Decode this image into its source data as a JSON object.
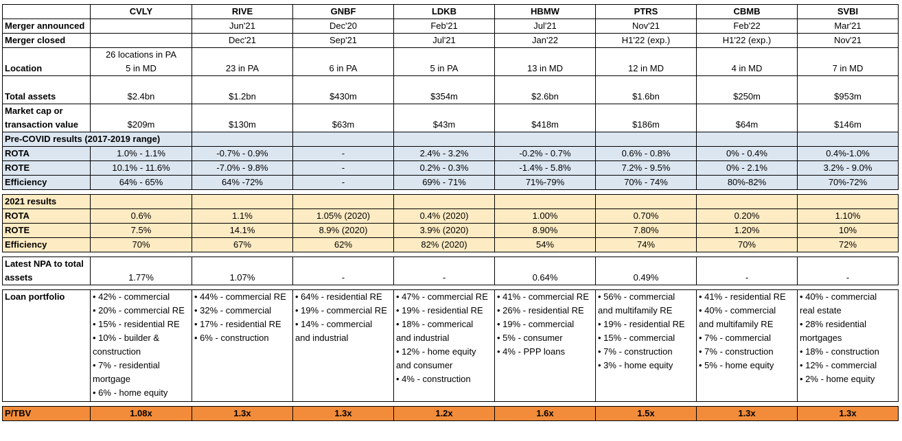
{
  "banks": [
    "CVLY",
    "RIVE",
    "GNBF",
    "LDKB",
    "HBMW",
    "PTRS",
    "CBMB",
    "SVBI"
  ],
  "rows": {
    "merger_announced": {
      "label": "Merger announced",
      "values": [
        "",
        "Jun'21",
        "Dec'20",
        "Feb'21",
        "Jul'21",
        "Nov'21",
        "Feb'22",
        "Mar'21"
      ]
    },
    "merger_closed": {
      "label": "Merger closed",
      "values": [
        "",
        "Dec'21",
        "Sep'21",
        "Jul'21",
        "Jan'22",
        "H1'22 (exp.)",
        "H1'22 (exp.)",
        "Nov'21"
      ]
    },
    "location": {
      "label": "Location",
      "values": [
        [
          "26 locations in PA",
          "5 in MD"
        ],
        [
          "23 in PA"
        ],
        [
          "6 in PA"
        ],
        [
          "5 in PA"
        ],
        [
          "13 in MD"
        ],
        [
          "12 in MD"
        ],
        [
          "4 in MD"
        ],
        [
          "7 in MD"
        ]
      ]
    },
    "total_assets": {
      "label": "Total assets",
      "values": [
        "$2.4bn",
        "$1.2bn",
        "$430m",
        "$354m",
        "$2.6bn",
        "$1.6bn",
        "$250m",
        "$953m"
      ]
    },
    "market_cap": {
      "label_line1": "Market cap or",
      "label_line2": "transaction value",
      "values": [
        "$209m",
        "$130m",
        "$63m",
        "$43m",
        "$418m",
        "$186m",
        "$64m",
        "$146m"
      ]
    }
  },
  "pre_covid": {
    "title": "Pre-COVID results (2017-2019 range)",
    "rota": {
      "label": "ROTA",
      "values": [
        "1.0% - 1.1%",
        "-0.7% - 0.9%",
        "-",
        "2.4% - 3.2%",
        "-0.2% - 0.7%",
        "0.6% - 0.8%",
        "0% - 0.4%",
        "0.4%-1.0%"
      ]
    },
    "rote": {
      "label": "ROTE",
      "values": [
        "10.1% - 11.6%",
        "-7.0% - 9.8%",
        "-",
        "0.2% - 0.3%",
        "-1.4% - 5.8%",
        "7.2% - 9.5%",
        "0% - 2.1%",
        "3.2% - 9.0%"
      ]
    },
    "efficiency": {
      "label": "Efficiency",
      "values": [
        "64% - 65%",
        "64% -72%",
        "-",
        "69% - 71%",
        "71%-79%",
        "70% - 74%",
        "80%-82%",
        "70%-72%"
      ]
    }
  },
  "results_2021": {
    "title": "2021 results",
    "rota": {
      "label": "ROTA",
      "values": [
        "0.6%",
        "1.1%",
        "1.05% (2020)",
        "0.4% (2020)",
        "1.00%",
        "0.70%",
        "0.20%",
        "1.10%"
      ]
    },
    "rote": {
      "label": "ROTE",
      "values": [
        "7.5%",
        "14.1%",
        "8.9% (2020)",
        "3.9% (2020)",
        "8.90%",
        "7.80%",
        "1.20%",
        "10%"
      ]
    },
    "efficiency": {
      "label": "Efficiency",
      "values": [
        "70%",
        "67%",
        "62%",
        "82% (2020)",
        "54%",
        "74%",
        "70%",
        "72%"
      ]
    }
  },
  "npa": {
    "label_line1": "Latest NPA to total",
    "label_line2": "assets",
    "values": [
      "1.77%",
      "1.07%",
      "-",
      "-",
      "0.64%",
      "0.49%",
      "-",
      "-"
    ]
  },
  "loan_portfolio": {
    "label": "Loan portfolio",
    "values": [
      [
        "• 42% - commercial",
        "• 20% - commercial RE",
        "• 15% - residential RE",
        "• 10% - builder &",
        "construction",
        "• 7% - residential",
        "mortgage",
        "• 6% - home equity"
      ],
      [
        "• 44% - commercial RE",
        "• 32% - commercial",
        "• 17% - residential RE",
        "• 6% - construction"
      ],
      [
        "• 64% - residential RE",
        "• 19% - commercial RE",
        "• 14% - commercial",
        "and industrial"
      ],
      [
        "• 47% - commercial RE",
        "• 19% - residential RE",
        "• 18% - commerical",
        "and industrial",
        "• 12% - home equity",
        "and consumer",
        "• 4% - construction"
      ],
      [
        "• 41% - commercial RE",
        "• 26% - residential RE",
        "• 19% - commercial",
        "• 5% - consumer",
        "• 4% - PPP loans"
      ],
      [
        "• 56% - commercial",
        "and multifamily RE",
        "• 19% - residential RE",
        "• 15% - commercial",
        "• 7% - construction",
        "• 3% - home equity"
      ],
      [
        "• 41% - residential RE",
        "• 40% - commercial",
        "and multifamily RE",
        "• 7% - commercial",
        "• 7% - construction",
        "• 5% - home equity"
      ],
      [
        "• 40% - commercial",
        "real estate",
        "• 28% residential",
        "mortgages",
        "• 18% - construction",
        "• 12% - commercial",
        "• 2% - home equity"
      ]
    ]
  },
  "ptbv": {
    "label": "P/TBV",
    "values": [
      "1.08x",
      "1.3x",
      "1.3x",
      "1.2x",
      "1.6x",
      "1.5x",
      "1.3x",
      "1.3x"
    ]
  },
  "colors": {
    "blue_band": "#dce6f1",
    "yellow_band": "#fdebc3",
    "orange_band": "#f28c3a"
  }
}
